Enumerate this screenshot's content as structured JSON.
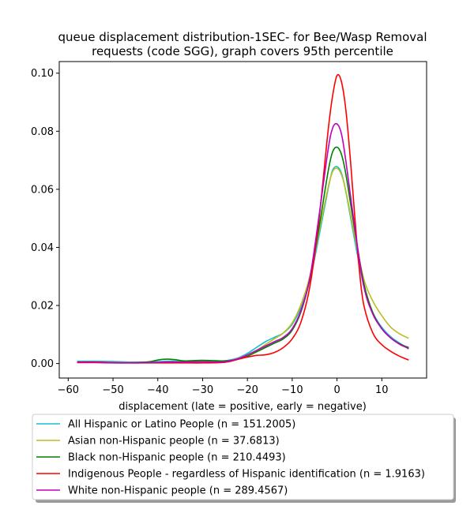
{
  "chart_data": {
    "type": "line",
    "title_lines": [
      "queue displacement distribution-1SEC-  for Bee/Wasp Removal",
      "requests (code SGG), graph covers 95th percentile"
    ],
    "xlabel": "displacement (late = positive, early = negative)",
    "ylabel": "",
    "xlim": [
      -62,
      20
    ],
    "ylim": [
      -0.005,
      0.104
    ],
    "xticks": [
      -60,
      -50,
      -40,
      -30,
      -20,
      -10,
      0,
      10
    ],
    "yticks": [
      0.0,
      0.02,
      0.04,
      0.06,
      0.08,
      0.1
    ],
    "ytick_labels": [
      "0.00",
      "0.02",
      "0.04",
      "0.06",
      "0.08",
      "0.10"
    ],
    "grid": false,
    "legend_placement": "below",
    "series": [
      {
        "name": "All Hispanic or Latino People (n = 151.2005)",
        "color": "#17becf",
        "x": [
          -58,
          -54,
          -50,
          -46,
          -42,
          -38,
          -34,
          -30,
          -26,
          -24,
          -22,
          -20,
          -18,
          -16,
          -14,
          -12,
          -10,
          -8,
          -6,
          -4,
          -2,
          -1,
          0,
          1,
          2,
          4,
          6,
          8,
          10,
          12,
          14,
          16
        ],
        "y": [
          0.0008,
          0.0008,
          0.0007,
          0.0005,
          0.0005,
          0.0008,
          0.0008,
          0.001,
          0.0008,
          0.0012,
          0.002,
          0.0035,
          0.0055,
          0.0075,
          0.009,
          0.0105,
          0.0135,
          0.0195,
          0.029,
          0.044,
          0.06,
          0.0665,
          0.0678,
          0.0655,
          0.059,
          0.042,
          0.0265,
          0.0175,
          0.0125,
          0.0092,
          0.007,
          0.005
        ]
      },
      {
        "name": "Asian non-Hispanic people (n = 37.6813)",
        "color": "#bcbd22",
        "x": [
          -58,
          -54,
          -50,
          -46,
          -42,
          -38,
          -34,
          -30,
          -26,
          -24,
          -22,
          -20,
          -18,
          -16,
          -14,
          -12,
          -10,
          -8,
          -6,
          -4,
          -2,
          -1,
          0,
          1,
          2,
          4,
          6,
          8,
          10,
          12,
          14,
          16
        ],
        "y": [
          0.0005,
          0.0004,
          0.0003,
          0.0003,
          0.0003,
          0.0004,
          0.0004,
          0.0005,
          0.0005,
          0.0009,
          0.0018,
          0.003,
          0.0045,
          0.0065,
          0.0085,
          0.0105,
          0.014,
          0.0205,
          0.0305,
          0.0455,
          0.0605,
          0.066,
          0.0672,
          0.065,
          0.0592,
          0.0435,
          0.029,
          0.0215,
          0.0165,
          0.0125,
          0.0102,
          0.0087
        ]
      },
      {
        "name": "Black non-Hispanic people (n = 210.4493)",
        "color": "#008000",
        "x": [
          -58,
          -54,
          -50,
          -46,
          -42,
          -40,
          -38,
          -36,
          -34,
          -30,
          -26,
          -24,
          -22,
          -20,
          -18,
          -16,
          -14,
          -12,
          -10,
          -8,
          -6,
          -4,
          -2,
          -1,
          0,
          1,
          2,
          4,
          6,
          8,
          10,
          12,
          14,
          16
        ],
        "y": [
          0.0005,
          0.0004,
          0.0003,
          0.0003,
          0.0006,
          0.0012,
          0.0015,
          0.0013,
          0.0009,
          0.0011,
          0.0009,
          0.001,
          0.0015,
          0.0025,
          0.004,
          0.0055,
          0.007,
          0.0085,
          0.0115,
          0.018,
          0.0295,
          0.047,
          0.066,
          0.0728,
          0.0745,
          0.072,
          0.065,
          0.0455,
          0.0275,
          0.0175,
          0.012,
          0.0088,
          0.0068,
          0.0055
        ]
      },
      {
        "name": "Indigenous People - regardless of Hispanic identification (n = 1.9163)",
        "color": "#ff0000",
        "x": [
          -58,
          -54,
          -50,
          -46,
          -42,
          -38,
          -34,
          -30,
          -26,
          -24,
          -22,
          -20,
          -18,
          -16,
          -14,
          -12,
          -10,
          -8,
          -6,
          -4,
          -2,
          -1,
          0,
          1,
          2,
          3,
          4,
          5,
          6,
          8,
          10,
          12,
          14,
          16
        ],
        "y": [
          0.0005,
          0.0005,
          0.0003,
          0.0002,
          0.0002,
          0.0002,
          0.0002,
          0.0002,
          0.0003,
          0.0007,
          0.0015,
          0.0022,
          0.0028,
          0.003,
          0.0038,
          0.0055,
          0.0085,
          0.0145,
          0.027,
          0.05,
          0.08,
          0.092,
          0.0992,
          0.097,
          0.087,
          0.07,
          0.05,
          0.032,
          0.02,
          0.0105,
          0.0065,
          0.0042,
          0.0025,
          0.0012
        ]
      },
      {
        "name": "White non-Hispanic people (n = 289.4567)",
        "color": "#bf00bf",
        "x": [
          -58,
          -54,
          -50,
          -46,
          -42,
          -38,
          -34,
          -30,
          -26,
          -24,
          -22,
          -20,
          -18,
          -16,
          -14,
          -12,
          -10,
          -8,
          -6,
          -4,
          -2,
          -1,
          0,
          1,
          2,
          4,
          6,
          8,
          10,
          12,
          14,
          16
        ],
        "y": [
          0.0003,
          0.0003,
          0.0002,
          0.0002,
          0.0003,
          0.0005,
          0.0005,
          0.0006,
          0.0005,
          0.0009,
          0.0017,
          0.003,
          0.0045,
          0.006,
          0.0075,
          0.009,
          0.012,
          0.0185,
          0.03,
          0.051,
          0.0735,
          0.081,
          0.0825,
          0.079,
          0.0695,
          0.0465,
          0.0265,
          0.017,
          0.012,
          0.0088,
          0.0066,
          0.0052
        ]
      }
    ]
  }
}
